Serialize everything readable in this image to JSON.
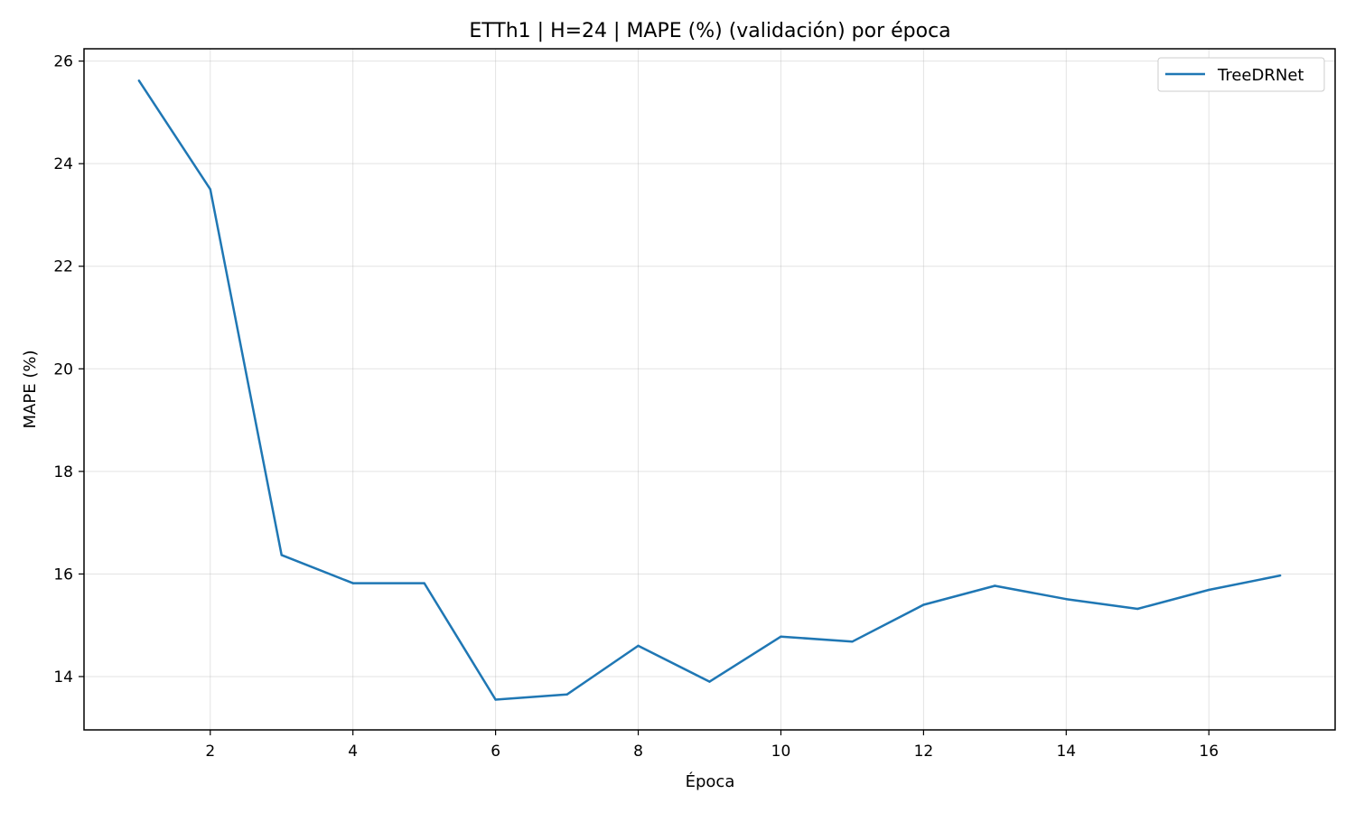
{
  "chart_data": {
    "type": "line",
    "title": "ETTh1 | H=24 | MAPE (%) (validación) por época",
    "xlabel": "Época",
    "ylabel": "MAPE (%)",
    "xlim": [
      0.23,
      17.77
    ],
    "ylim": [
      12.96,
      26.24
    ],
    "xticks": [
      2,
      4,
      6,
      8,
      10,
      12,
      14,
      16
    ],
    "yticks": [
      14,
      16,
      18,
      20,
      22,
      24,
      26
    ],
    "grid": true,
    "legend_position": "top-right",
    "series": [
      {
        "name": "TreeDRNet",
        "color": "#1f77b4",
        "x": [
          1,
          2,
          3,
          4,
          5,
          6,
          7,
          8,
          9,
          10,
          11,
          12,
          13,
          14,
          15,
          16,
          17
        ],
        "y": [
          25.62,
          23.5,
          16.37,
          15.82,
          15.82,
          13.55,
          13.65,
          14.6,
          13.9,
          14.78,
          14.68,
          15.4,
          15.77,
          15.51,
          15.32,
          15.69,
          15.97
        ]
      }
    ]
  }
}
